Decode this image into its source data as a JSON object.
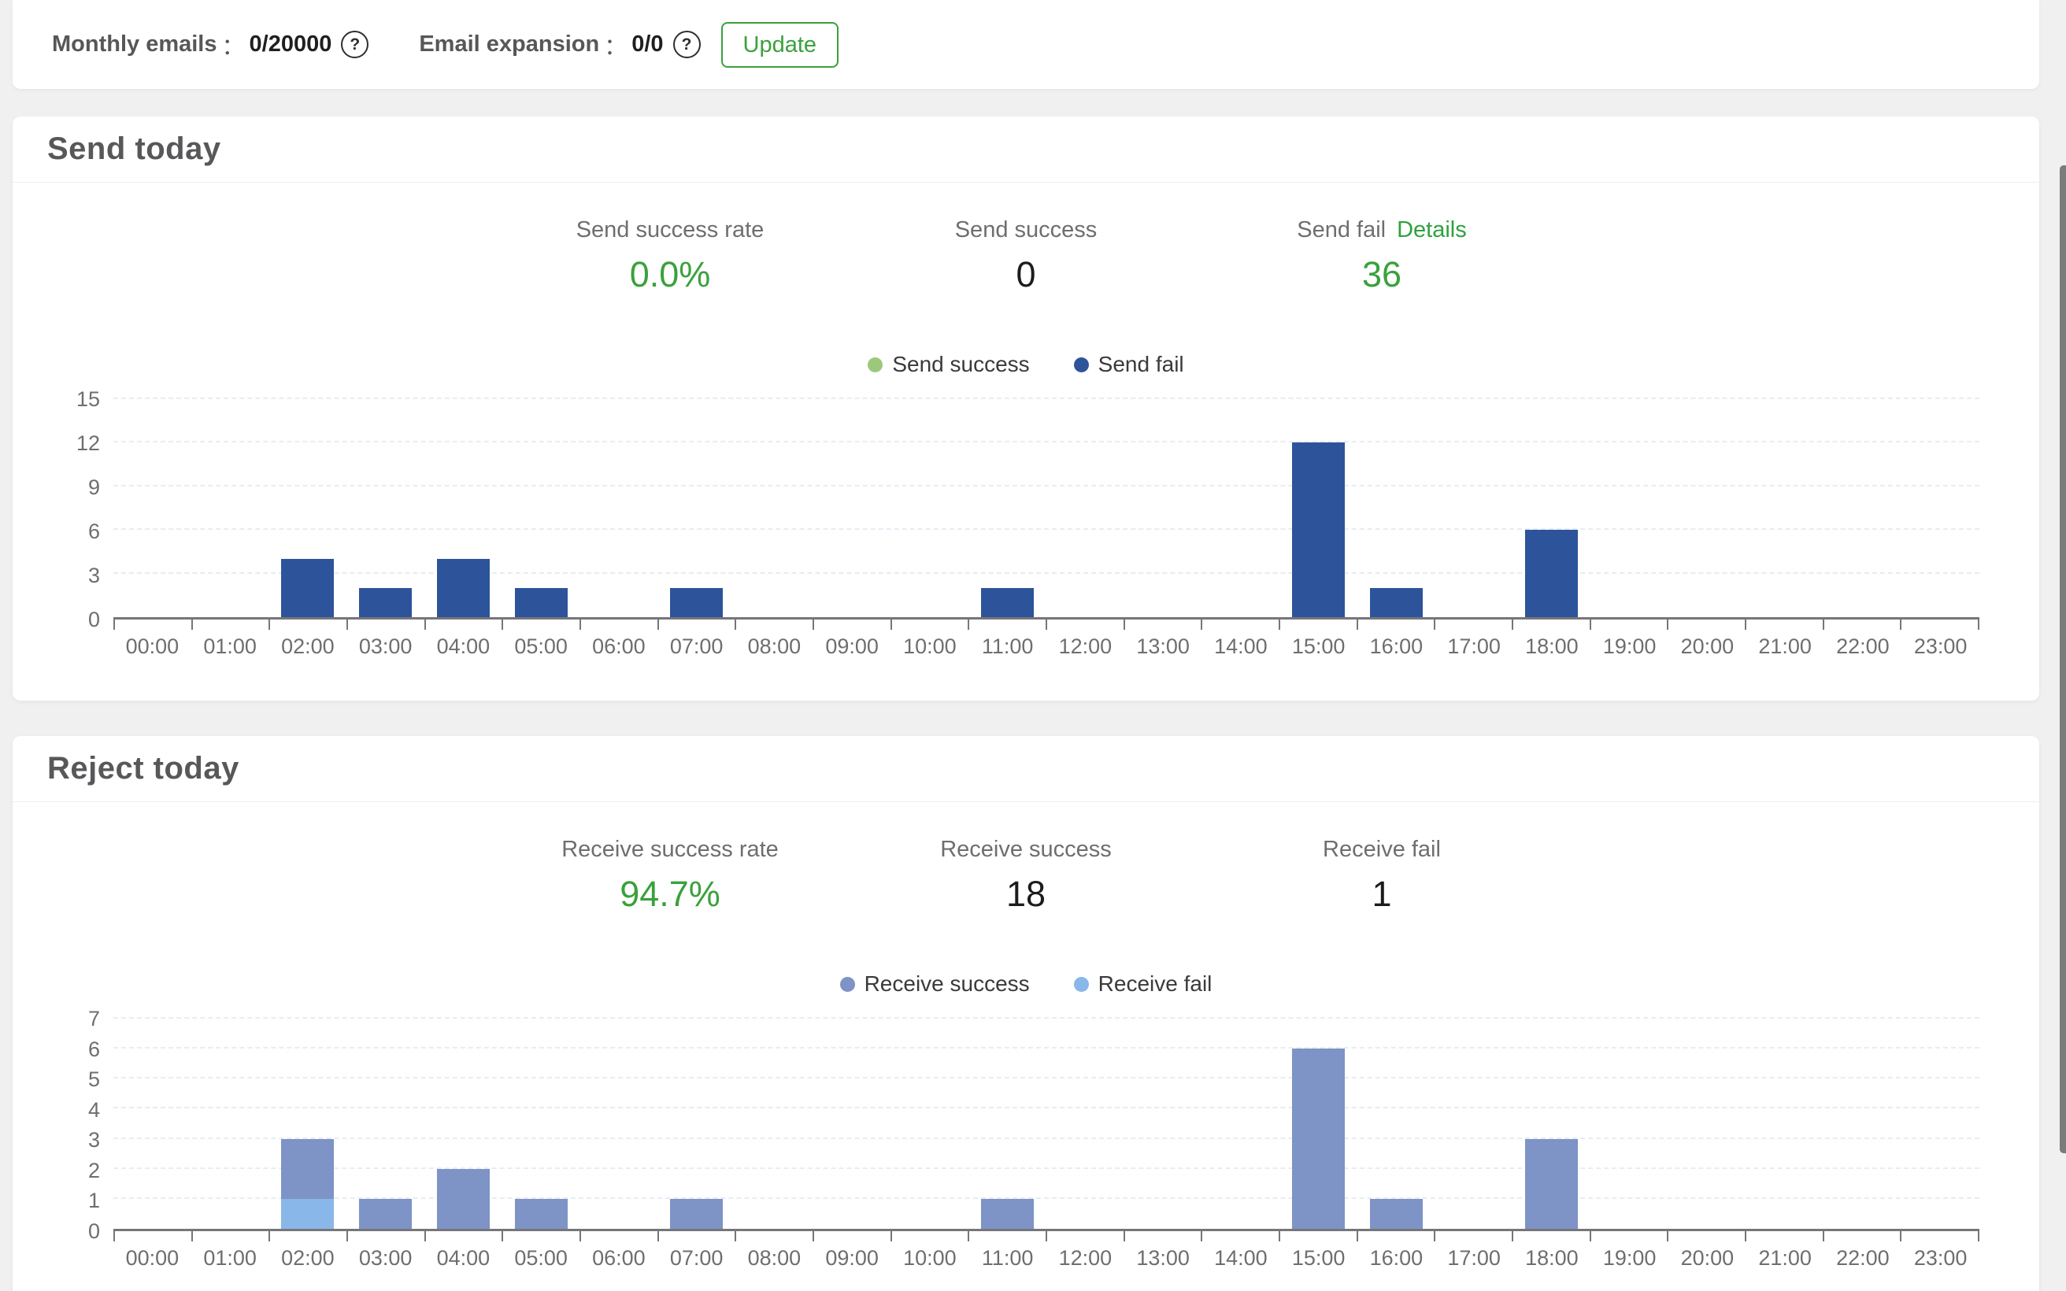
{
  "top_bar": {
    "items": [
      {
        "label": "Monthly emails",
        "separator": "：",
        "value": "0/20000",
        "help_icon_glyph": "?"
      },
      {
        "label": "Email expansion",
        "separator": "：",
        "value": "0/0",
        "help_icon_glyph": "?"
      }
    ],
    "update_button_label": "Update"
  },
  "cards": [
    {
      "title": "Send today",
      "stats": [
        {
          "label": "Send success rate",
          "value": "0.0%"
        },
        {
          "label": "Send success",
          "value": "0"
        },
        {
          "label": "Send fail",
          "value": "36",
          "link_label": "Details"
        }
      ]
    },
    {
      "title": "Reject today",
      "stats": [
        {
          "label": "Receive success rate",
          "value": "94.7%"
        },
        {
          "label": "Receive success",
          "value": "18"
        },
        {
          "label": "Receive fail",
          "value": "1"
        }
      ]
    }
  ],
  "chart_data": [
    {
      "type": "bar",
      "stacked": true,
      "title": "Send today hourly",
      "categories": [
        "00:00",
        "01:00",
        "02:00",
        "03:00",
        "04:00",
        "05:00",
        "06:00",
        "07:00",
        "08:00",
        "09:00",
        "10:00",
        "11:00",
        "12:00",
        "13:00",
        "14:00",
        "15:00",
        "16:00",
        "17:00",
        "18:00",
        "19:00",
        "20:00",
        "21:00",
        "22:00",
        "23:00"
      ],
      "series": [
        {
          "name": "Send success",
          "color": "#9cc87c",
          "values": [
            0,
            0,
            0,
            0,
            0,
            0,
            0,
            0,
            0,
            0,
            0,
            0,
            0,
            0,
            0,
            0,
            0,
            0,
            0,
            0,
            0,
            0,
            0,
            0
          ]
        },
        {
          "name": "Send fail",
          "color": "#2d549b",
          "values": [
            0,
            0,
            4,
            2,
            4,
            2,
            0,
            2,
            0,
            0,
            0,
            2,
            0,
            0,
            0,
            12,
            2,
            0,
            6,
            0,
            0,
            0,
            0,
            0
          ]
        }
      ],
      "ylim": [
        0,
        15
      ],
      "yticks": [
        0,
        3,
        6,
        9,
        12,
        15
      ],
      "grid": "dashed-horizontal",
      "legend_position": "top"
    },
    {
      "type": "bar",
      "stacked": true,
      "title": "Reject today hourly",
      "categories": [
        "00:00",
        "01:00",
        "02:00",
        "03:00",
        "04:00",
        "05:00",
        "06:00",
        "07:00",
        "08:00",
        "09:00",
        "10:00",
        "11:00",
        "12:00",
        "13:00",
        "14:00",
        "15:00",
        "16:00",
        "17:00",
        "18:00",
        "19:00",
        "20:00",
        "21:00",
        "22:00",
        "23:00"
      ],
      "series": [
        {
          "name": "Receive success",
          "color": "#7e93c6",
          "values": [
            0,
            0,
            2,
            1,
            2,
            1,
            0,
            1,
            0,
            0,
            0,
            1,
            0,
            0,
            0,
            6,
            1,
            0,
            3,
            0,
            0,
            0,
            0,
            0
          ]
        },
        {
          "name": "Receive fail",
          "color": "#8ab7e9",
          "values": [
            0,
            0,
            1,
            0,
            0,
            0,
            0,
            0,
            0,
            0,
            0,
            0,
            0,
            0,
            0,
            0,
            0,
            0,
            0,
            0,
            0,
            0,
            0,
            0
          ]
        }
      ],
      "ylim": [
        0,
        7
      ],
      "yticks": [
        0,
        1,
        2,
        3,
        4,
        5,
        6,
        7
      ],
      "grid": "dashed-horizontal",
      "legend_position": "top"
    }
  ],
  "colors": {
    "accent_green": "#3aa13c",
    "send_success": "#9cc87c",
    "send_fail": "#2d549b",
    "receive_success": "#7e93c6",
    "receive_fail": "#8ab7e9",
    "page_background": "#f0f0f1"
  }
}
